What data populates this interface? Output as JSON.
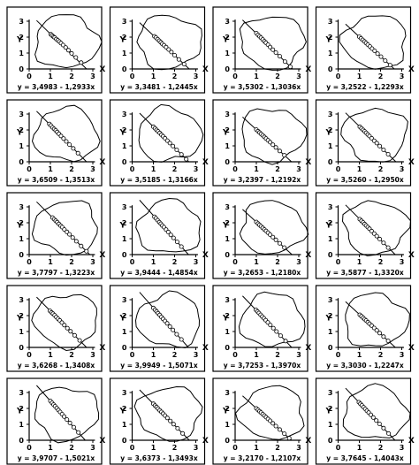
{
  "chart_data": {
    "type": "scatter",
    "x_axis": {
      "label": "X",
      "ticks": [
        "0",
        "1",
        "2",
        "3"
      ],
      "range": [
        0,
        3
      ]
    },
    "y_axis": {
      "label": "Y",
      "ticks": [
        "0",
        "1",
        "2",
        "3"
      ],
      "range": [
        0,
        3
      ]
    },
    "grid": false,
    "layout": {
      "rows": 5,
      "cols": 4
    },
    "panels": [
      {
        "equation": "y = 3,4983 - 1,2933x",
        "intercept": 3.4983,
        "slope": -1.2933,
        "points": [
          [
            1.02,
            2.18
          ],
          [
            1.08,
            2.1
          ],
          [
            1.15,
            2.02
          ],
          [
            1.2,
            1.98
          ],
          [
            1.28,
            1.88
          ],
          [
            1.35,
            1.8
          ],
          [
            1.42,
            1.72
          ],
          [
            1.5,
            1.62
          ],
          [
            1.6,
            1.5
          ],
          [
            1.72,
            1.35
          ],
          [
            1.85,
            1.18
          ],
          [
            2.0,
            0.98
          ],
          [
            2.2,
            0.72
          ],
          [
            2.45,
            0.4
          ]
        ]
      },
      {
        "equation": "y = 3,3481 - 1,2445x",
        "intercept": 3.3481,
        "slope": -1.2445,
        "points": [
          [
            1.05,
            2.05
          ],
          [
            1.12,
            1.97
          ],
          [
            1.2,
            1.87
          ],
          [
            1.28,
            1.77
          ],
          [
            1.35,
            1.68
          ],
          [
            1.42,
            1.58
          ],
          [
            1.5,
            1.49
          ],
          [
            1.6,
            1.37
          ],
          [
            1.72,
            1.22
          ],
          [
            1.85,
            1.06
          ],
          [
            2.0,
            0.86
          ],
          [
            2.2,
            0.6
          ],
          [
            2.45,
            0.3
          ]
        ]
      },
      {
        "equation": "y = 3,5302 - 1,3036x",
        "intercept": 3.5302,
        "slope": -1.3036,
        "points": [
          [
            1.0,
            2.25
          ],
          [
            1.08,
            2.14
          ],
          [
            1.15,
            2.05
          ],
          [
            1.22,
            1.96
          ],
          [
            1.3,
            1.85
          ],
          [
            1.38,
            1.74
          ],
          [
            1.45,
            1.65
          ],
          [
            1.55,
            1.52
          ],
          [
            1.65,
            1.38
          ],
          [
            1.78,
            1.21
          ],
          [
            1.92,
            1.03
          ],
          [
            2.1,
            0.8
          ],
          [
            2.35,
            0.46
          ],
          [
            2.6,
            0.14
          ]
        ]
      },
      {
        "equation": "y = 3,2522 - 1,2293x",
        "intercept": 3.2522,
        "slope": -1.2293,
        "points": [
          [
            1.0,
            2.02
          ],
          [
            1.08,
            1.92
          ],
          [
            1.16,
            1.83
          ],
          [
            1.24,
            1.73
          ],
          [
            1.32,
            1.63
          ],
          [
            1.4,
            1.53
          ],
          [
            1.5,
            1.41
          ],
          [
            1.6,
            1.28
          ],
          [
            1.72,
            1.14
          ],
          [
            1.86,
            0.96
          ],
          [
            2.02,
            0.77
          ],
          [
            2.22,
            0.52
          ],
          [
            2.45,
            0.24
          ]
        ]
      },
      {
        "equation": "y = 3,6509 - 1,3513x",
        "intercept": 3.6509,
        "slope": -1.3513,
        "points": [
          [
            0.95,
            2.38
          ],
          [
            1.02,
            2.28
          ],
          [
            1.1,
            2.16
          ],
          [
            1.18,
            2.06
          ],
          [
            1.25,
            1.97
          ],
          [
            1.32,
            1.87
          ],
          [
            1.4,
            1.76
          ],
          [
            1.5,
            1.62
          ],
          [
            1.62,
            1.46
          ],
          [
            1.75,
            1.28
          ],
          [
            1.9,
            1.08
          ],
          [
            2.08,
            0.84
          ],
          [
            2.3,
            0.54
          ]
        ]
      },
      {
        "equation": "y = 3,5185 - 1,3166x",
        "intercept": 3.5185,
        "slope": -1.3166,
        "points": [
          [
            1.0,
            2.2
          ],
          [
            1.08,
            2.1
          ],
          [
            1.15,
            2.0
          ],
          [
            1.22,
            1.91
          ],
          [
            1.3,
            1.81
          ],
          [
            1.38,
            1.7
          ],
          [
            1.46,
            1.6
          ],
          [
            1.55,
            1.48
          ],
          [
            1.66,
            1.33
          ],
          [
            1.78,
            1.17
          ],
          [
            1.92,
            0.99
          ],
          [
            2.1,
            0.75
          ],
          [
            2.32,
            0.46
          ],
          [
            2.55,
            0.16
          ]
        ]
      },
      {
        "equation": "y = 3,2397 - 1,2192x",
        "intercept": 3.2397,
        "slope": -1.2192,
        "points": [
          [
            1.0,
            2.02
          ],
          [
            1.08,
            1.92
          ],
          [
            1.15,
            1.84
          ],
          [
            1.22,
            1.75
          ],
          [
            1.3,
            1.66
          ],
          [
            1.38,
            1.56
          ],
          [
            1.46,
            1.46
          ],
          [
            1.55,
            1.35
          ],
          [
            1.65,
            1.23
          ],
          [
            1.78,
            1.07
          ],
          [
            1.92,
            0.9
          ],
          [
            2.1,
            0.68
          ],
          [
            2.32,
            0.41
          ]
        ]
      },
      {
        "equation": "y = 3,5260 - 1,2950x",
        "intercept": 3.526,
        "slope": -1.295,
        "points": [
          [
            1.02,
            2.2
          ],
          [
            1.1,
            2.1
          ],
          [
            1.18,
            2.0
          ],
          [
            1.25,
            1.91
          ],
          [
            1.32,
            1.82
          ],
          [
            1.4,
            1.71
          ],
          [
            1.48,
            1.61
          ],
          [
            1.58,
            1.48
          ],
          [
            1.7,
            1.32
          ],
          [
            1.82,
            1.17
          ],
          [
            1.96,
            0.99
          ],
          [
            2.14,
            0.75
          ],
          [
            2.36,
            0.47
          ]
        ]
      },
      {
        "equation": "y = 3,7797 - 1,3223x",
        "intercept": 3.7797,
        "slope": -1.3223,
        "points": [
          [
            1.1,
            2.33
          ],
          [
            1.18,
            2.22
          ],
          [
            1.25,
            2.13
          ],
          [
            1.32,
            2.04
          ],
          [
            1.4,
            1.93
          ],
          [
            1.48,
            1.82
          ],
          [
            1.56,
            1.72
          ],
          [
            1.66,
            1.58
          ],
          [
            1.78,
            1.43
          ],
          [
            1.9,
            1.27
          ],
          [
            2.05,
            1.07
          ],
          [
            2.22,
            0.84
          ],
          [
            2.45,
            0.54
          ],
          [
            2.7,
            0.21
          ]
        ]
      },
      {
        "equation": "y = 3,9444 - 1,4854x",
        "intercept": 3.9444,
        "slope": -1.4854,
        "points": [
          [
            1.05,
            2.38
          ],
          [
            1.12,
            2.28
          ],
          [
            1.2,
            2.16
          ],
          [
            1.28,
            2.04
          ],
          [
            1.35,
            1.94
          ],
          [
            1.42,
            1.83
          ],
          [
            1.5,
            1.72
          ],
          [
            1.6,
            1.57
          ],
          [
            1.7,
            1.42
          ],
          [
            1.82,
            1.24
          ],
          [
            1.95,
            1.05
          ],
          [
            2.12,
            0.8
          ],
          [
            2.32,
            0.5
          ]
        ]
      },
      {
        "equation": "y = 3,2653 - 1,2180x",
        "intercept": 3.2653,
        "slope": -1.218,
        "points": [
          [
            1.0,
            2.05
          ],
          [
            1.08,
            1.95
          ],
          [
            1.15,
            1.86
          ],
          [
            1.22,
            1.78
          ],
          [
            1.3,
            1.68
          ],
          [
            1.38,
            1.58
          ],
          [
            1.46,
            1.49
          ],
          [
            1.55,
            1.38
          ],
          [
            1.65,
            1.25
          ],
          [
            1.78,
            1.1
          ],
          [
            1.92,
            0.93
          ],
          [
            2.1,
            0.71
          ],
          [
            2.32,
            0.44
          ]
        ]
      },
      {
        "equation": "y = 3,5877 - 1,3320x",
        "intercept": 3.5877,
        "slope": -1.332,
        "points": [
          [
            1.02,
            2.22
          ],
          [
            1.1,
            2.12
          ],
          [
            1.18,
            2.02
          ],
          [
            1.25,
            1.92
          ],
          [
            1.32,
            1.83
          ],
          [
            1.4,
            1.72
          ],
          [
            1.48,
            1.62
          ],
          [
            1.58,
            1.48
          ],
          [
            1.7,
            1.32
          ],
          [
            1.82,
            1.16
          ],
          [
            1.96,
            0.98
          ],
          [
            2.14,
            0.74
          ],
          [
            2.36,
            0.44
          ]
        ]
      },
      {
        "equation": "y = 3,6268 - 1,3408x",
        "intercept": 3.6268,
        "slope": -1.3408,
        "points": [
          [
            0.98,
            2.3
          ],
          [
            1.05,
            2.2
          ],
          [
            1.12,
            2.12
          ],
          [
            1.2,
            2.02
          ],
          [
            1.28,
            1.91
          ],
          [
            1.36,
            1.8
          ],
          [
            1.44,
            1.7
          ],
          [
            1.54,
            1.56
          ],
          [
            1.66,
            1.4
          ],
          [
            1.8,
            1.21
          ],
          [
            1.95,
            1.01
          ],
          [
            2.14,
            0.76
          ],
          [
            2.38,
            0.44
          ]
        ]
      },
      {
        "equation": "y = 3,9949 - 1,5071x",
        "intercept": 3.9949,
        "slope": -1.5071,
        "points": [
          [
            1.0,
            2.48
          ],
          [
            1.08,
            2.36
          ],
          [
            1.15,
            2.26
          ],
          [
            1.22,
            2.15
          ],
          [
            1.3,
            2.04
          ],
          [
            1.38,
            1.91
          ],
          [
            1.46,
            1.79
          ],
          [
            1.55,
            1.66
          ],
          [
            1.65,
            1.51
          ],
          [
            1.78,
            1.31
          ],
          [
            1.92,
            1.1
          ],
          [
            2.1,
            0.83
          ],
          [
            2.32,
            0.5
          ]
        ]
      },
      {
        "equation": "y = 3,7253 - 1,3970x",
        "intercept": 3.7253,
        "slope": -1.397,
        "points": [
          [
            0.98,
            2.36
          ],
          [
            1.05,
            2.26
          ],
          [
            1.12,
            2.16
          ],
          [
            1.2,
            2.05
          ],
          [
            1.28,
            1.94
          ],
          [
            1.36,
            1.83
          ],
          [
            1.44,
            1.71
          ],
          [
            1.54,
            1.57
          ],
          [
            1.66,
            1.41
          ],
          [
            1.8,
            1.21
          ],
          [
            1.95,
            1.0
          ],
          [
            2.14,
            0.74
          ],
          [
            2.38,
            0.4
          ]
        ]
      },
      {
        "equation": "y = 3,3030 - 1,2247x",
        "intercept": 3.303,
        "slope": -1.2247,
        "points": [
          [
            1.02,
            2.05
          ],
          [
            1.1,
            1.96
          ],
          [
            1.18,
            1.86
          ],
          [
            1.25,
            1.77
          ],
          [
            1.32,
            1.69
          ],
          [
            1.4,
            1.59
          ],
          [
            1.48,
            1.49
          ],
          [
            1.58,
            1.37
          ],
          [
            1.7,
            1.22
          ],
          [
            1.82,
            1.07
          ],
          [
            1.96,
            0.9
          ],
          [
            2.14,
            0.68
          ],
          [
            2.36,
            0.41
          ]
        ]
      },
      {
        "equation": "y = 3,9707 - 1,5021x",
        "intercept": 3.9707,
        "slope": -1.5021,
        "points": [
          [
            1.0,
            2.47
          ],
          [
            1.08,
            2.35
          ],
          [
            1.15,
            2.24
          ],
          [
            1.22,
            2.14
          ],
          [
            1.3,
            2.02
          ],
          [
            1.38,
            1.9
          ],
          [
            1.46,
            1.78
          ],
          [
            1.55,
            1.64
          ],
          [
            1.65,
            1.49
          ],
          [
            1.78,
            1.3
          ],
          [
            1.92,
            1.09
          ],
          [
            2.1,
            0.82
          ],
          [
            2.32,
            0.49
          ]
        ]
      },
      {
        "equation": "y = 3,6373 - 1,3493x",
        "intercept": 3.6373,
        "slope": -1.3493,
        "points": [
          [
            1.0,
            2.29
          ],
          [
            1.08,
            2.18
          ],
          [
            1.15,
            2.09
          ],
          [
            1.22,
            1.99
          ],
          [
            1.3,
            1.88
          ],
          [
            1.38,
            1.78
          ],
          [
            1.46,
            1.67
          ],
          [
            1.55,
            1.55
          ],
          [
            1.66,
            1.4
          ],
          [
            1.8,
            1.21
          ],
          [
            1.95,
            1.01
          ],
          [
            2.14,
            0.75
          ],
          [
            2.38,
            0.43
          ]
        ]
      },
      {
        "equation": "y = 3,2170 - 1,2107x",
        "intercept": 3.217,
        "slope": -1.2107,
        "points": [
          [
            1.0,
            2.0
          ],
          [
            1.08,
            1.91
          ],
          [
            1.15,
            1.82
          ],
          [
            1.22,
            1.74
          ],
          [
            1.3,
            1.64
          ],
          [
            1.38,
            1.55
          ],
          [
            1.46,
            1.45
          ],
          [
            1.55,
            1.34
          ],
          [
            1.65,
            1.22
          ],
          [
            1.78,
            1.06
          ],
          [
            1.92,
            0.89
          ],
          [
            2.1,
            0.67
          ],
          [
            2.32,
            0.41
          ],
          [
            2.55,
            0.13
          ]
        ]
      },
      {
        "equation": "y = 3,7645 - 1,4043x",
        "intercept": 3.7645,
        "slope": -1.4043,
        "points": [
          [
            0.98,
            2.39
          ],
          [
            1.05,
            2.29
          ],
          [
            1.12,
            2.19
          ],
          [
            1.2,
            2.08
          ],
          [
            1.28,
            1.97
          ],
          [
            1.36,
            1.85
          ],
          [
            1.44,
            1.74
          ],
          [
            1.54,
            1.6
          ],
          [
            1.66,
            1.43
          ],
          [
            1.8,
            1.24
          ],
          [
            1.95,
            1.03
          ],
          [
            2.14,
            0.76
          ],
          [
            2.38,
            0.42
          ]
        ]
      }
    ]
  }
}
